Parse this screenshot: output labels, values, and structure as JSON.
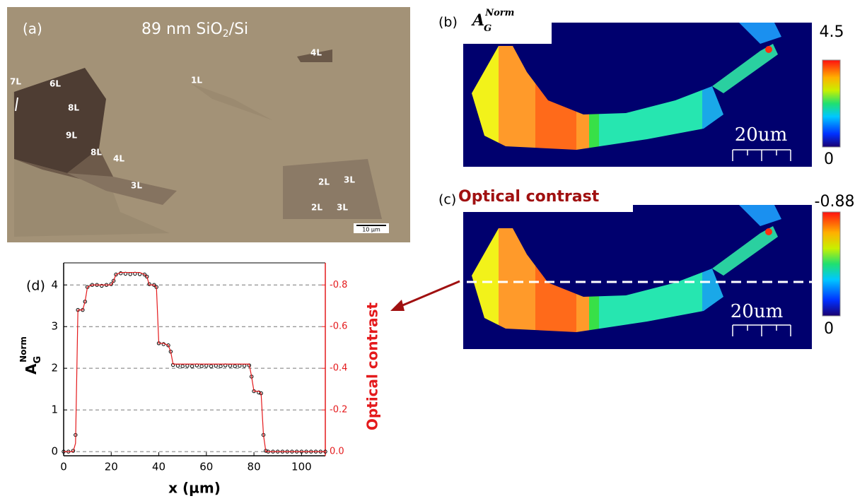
{
  "panel_a": {
    "label": "(a)",
    "title": {
      "text": "89 nm SiO",
      "sub": "2",
      "rest": "/Si"
    },
    "layer_labels": [
      "7L",
      "6L",
      "8L",
      "9L",
      "8L",
      "4L",
      "3L",
      "1L",
      "4L",
      "2L",
      "3L",
      "2L",
      "3L"
    ],
    "scale_bar": "10 µm"
  },
  "panel_b": {
    "label": "(b)",
    "title": {
      "base": "A",
      "sub": "G",
      "sup": "Norm"
    },
    "colorbar_max": "4.5",
    "colorbar_min": "0",
    "scale_bar": "20um"
  },
  "panel_c": {
    "label": "(c)",
    "title": "Optical contrast",
    "colorbar_max": "-0.88",
    "colorbar_min": "0",
    "scale_bar": "20um"
  },
  "chart_data": {
    "type": "line",
    "label": "(d)",
    "xlabel": "x (µm)",
    "ylabel": {
      "base": "A",
      "sub": "G",
      "sup": "Norm"
    },
    "y2label": "Optical contrast",
    "x": [
      0,
      2,
      4,
      5,
      6,
      8,
      9,
      10,
      12,
      14,
      16,
      18,
      20,
      21,
      22,
      24,
      26,
      28,
      30,
      32,
      34,
      35,
      36,
      38,
      39,
      40,
      42,
      44,
      45,
      46,
      48,
      50,
      52,
      54,
      56,
      58,
      60,
      62,
      64,
      66,
      68,
      70,
      72,
      74,
      76,
      78,
      79,
      80,
      82,
      83,
      84,
      85,
      86,
      88,
      90,
      92,
      94,
      96,
      98,
      100,
      102,
      104,
      106,
      108,
      110
    ],
    "series": [
      {
        "name": "A_G Norm",
        "color": "#000000",
        "marker": "circle",
        "values": [
          0,
          0,
          0.02,
          0.4,
          3.4,
          3.4,
          3.6,
          3.95,
          4.0,
          4.0,
          3.98,
          4.0,
          4.02,
          4.1,
          4.25,
          4.28,
          4.27,
          4.26,
          4.27,
          4.26,
          4.25,
          4.2,
          4.02,
          4.0,
          3.95,
          2.6,
          2.58,
          2.55,
          2.4,
          2.08,
          2.06,
          2.05,
          2.06,
          2.05,
          2.07,
          2.05,
          2.06,
          2.05,
          2.06,
          2.05,
          2.07,
          2.06,
          2.05,
          2.06,
          2.06,
          2.07,
          1.8,
          1.45,
          1.42,
          1.4,
          0.4,
          0.02,
          0,
          0,
          0,
          0,
          0,
          0,
          0,
          0,
          0,
          0,
          0,
          0,
          0
        ]
      },
      {
        "name": "Optical contrast",
        "color": "#e41a1c",
        "axis": "y2",
        "values": [
          0,
          0,
          0,
          -0.04,
          -0.68,
          -0.68,
          -0.72,
          -0.79,
          -0.8,
          -0.8,
          -0.8,
          -0.8,
          -0.8,
          -0.82,
          -0.85,
          -0.86,
          -0.86,
          -0.86,
          -0.86,
          -0.86,
          -0.85,
          -0.84,
          -0.8,
          -0.8,
          -0.79,
          -0.52,
          -0.52,
          -0.51,
          -0.48,
          -0.42,
          -0.42,
          -0.42,
          -0.42,
          -0.42,
          -0.42,
          -0.42,
          -0.42,
          -0.42,
          -0.42,
          -0.42,
          -0.42,
          -0.42,
          -0.42,
          -0.42,
          -0.42,
          -0.42,
          -0.36,
          -0.29,
          -0.29,
          -0.28,
          -0.08,
          0,
          0,
          0,
          0,
          0,
          0,
          0,
          0,
          0,
          0,
          0,
          0,
          0,
          0
        ]
      }
    ],
    "xlim": [
      0,
      110
    ],
    "xticks": [
      0,
      20,
      40,
      60,
      80,
      100
    ],
    "ylim": [
      -0.1,
      4.53
    ],
    "yticks": [
      0,
      1,
      2,
      3,
      4
    ],
    "y2lim": [
      0.02,
      -0.906
    ],
    "y2ticks": [
      {
        "value": 0,
        "label": "0.0"
      },
      -0.2,
      -0.4,
      -0.6,
      -0.8
    ],
    "y2color": "#e41a1c",
    "grid": true
  }
}
